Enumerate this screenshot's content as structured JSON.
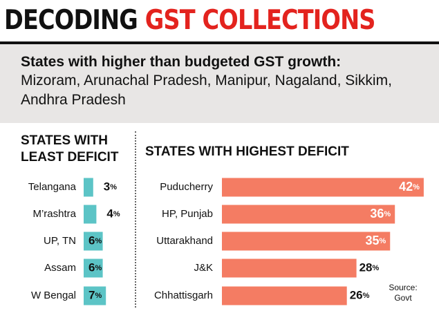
{
  "title": {
    "part1": "DECODING",
    "part2": "GST COLLECTIONS"
  },
  "summary": {
    "heading": "States with higher than budgeted GST growth:",
    "states": "Mizoram, Arunachal Pradesh, Manipur, Nagaland, Sikkim, Andhra Pradesh"
  },
  "colors": {
    "least_bar": "#5cc4c6",
    "highest_bar": "#f47c63",
    "title_accent": "#e3231e"
  },
  "source": {
    "line1": "Source:",
    "line2": "Govt"
  },
  "chart_data": [
    {
      "type": "bar",
      "orientation": "horizontal",
      "title_line1": "STATES WITH",
      "title_line2": "LEAST DEFICIT",
      "categories": [
        "Telangana",
        "M’rashtra",
        "UP, TN",
        "Assam",
        "W Bengal"
      ],
      "values": [
        3,
        4,
        6,
        6,
        7
      ],
      "unit": "%"
    },
    {
      "type": "bar",
      "orientation": "horizontal",
      "title": "STATES WITH HIGHEST DEFICIT",
      "categories": [
        "Puducherry",
        "HP, Punjab",
        "Uttarakhand",
        "J&K",
        "Chhattisgarh"
      ],
      "values": [
        42,
        36,
        35,
        28,
        26
      ],
      "unit": "%"
    }
  ]
}
